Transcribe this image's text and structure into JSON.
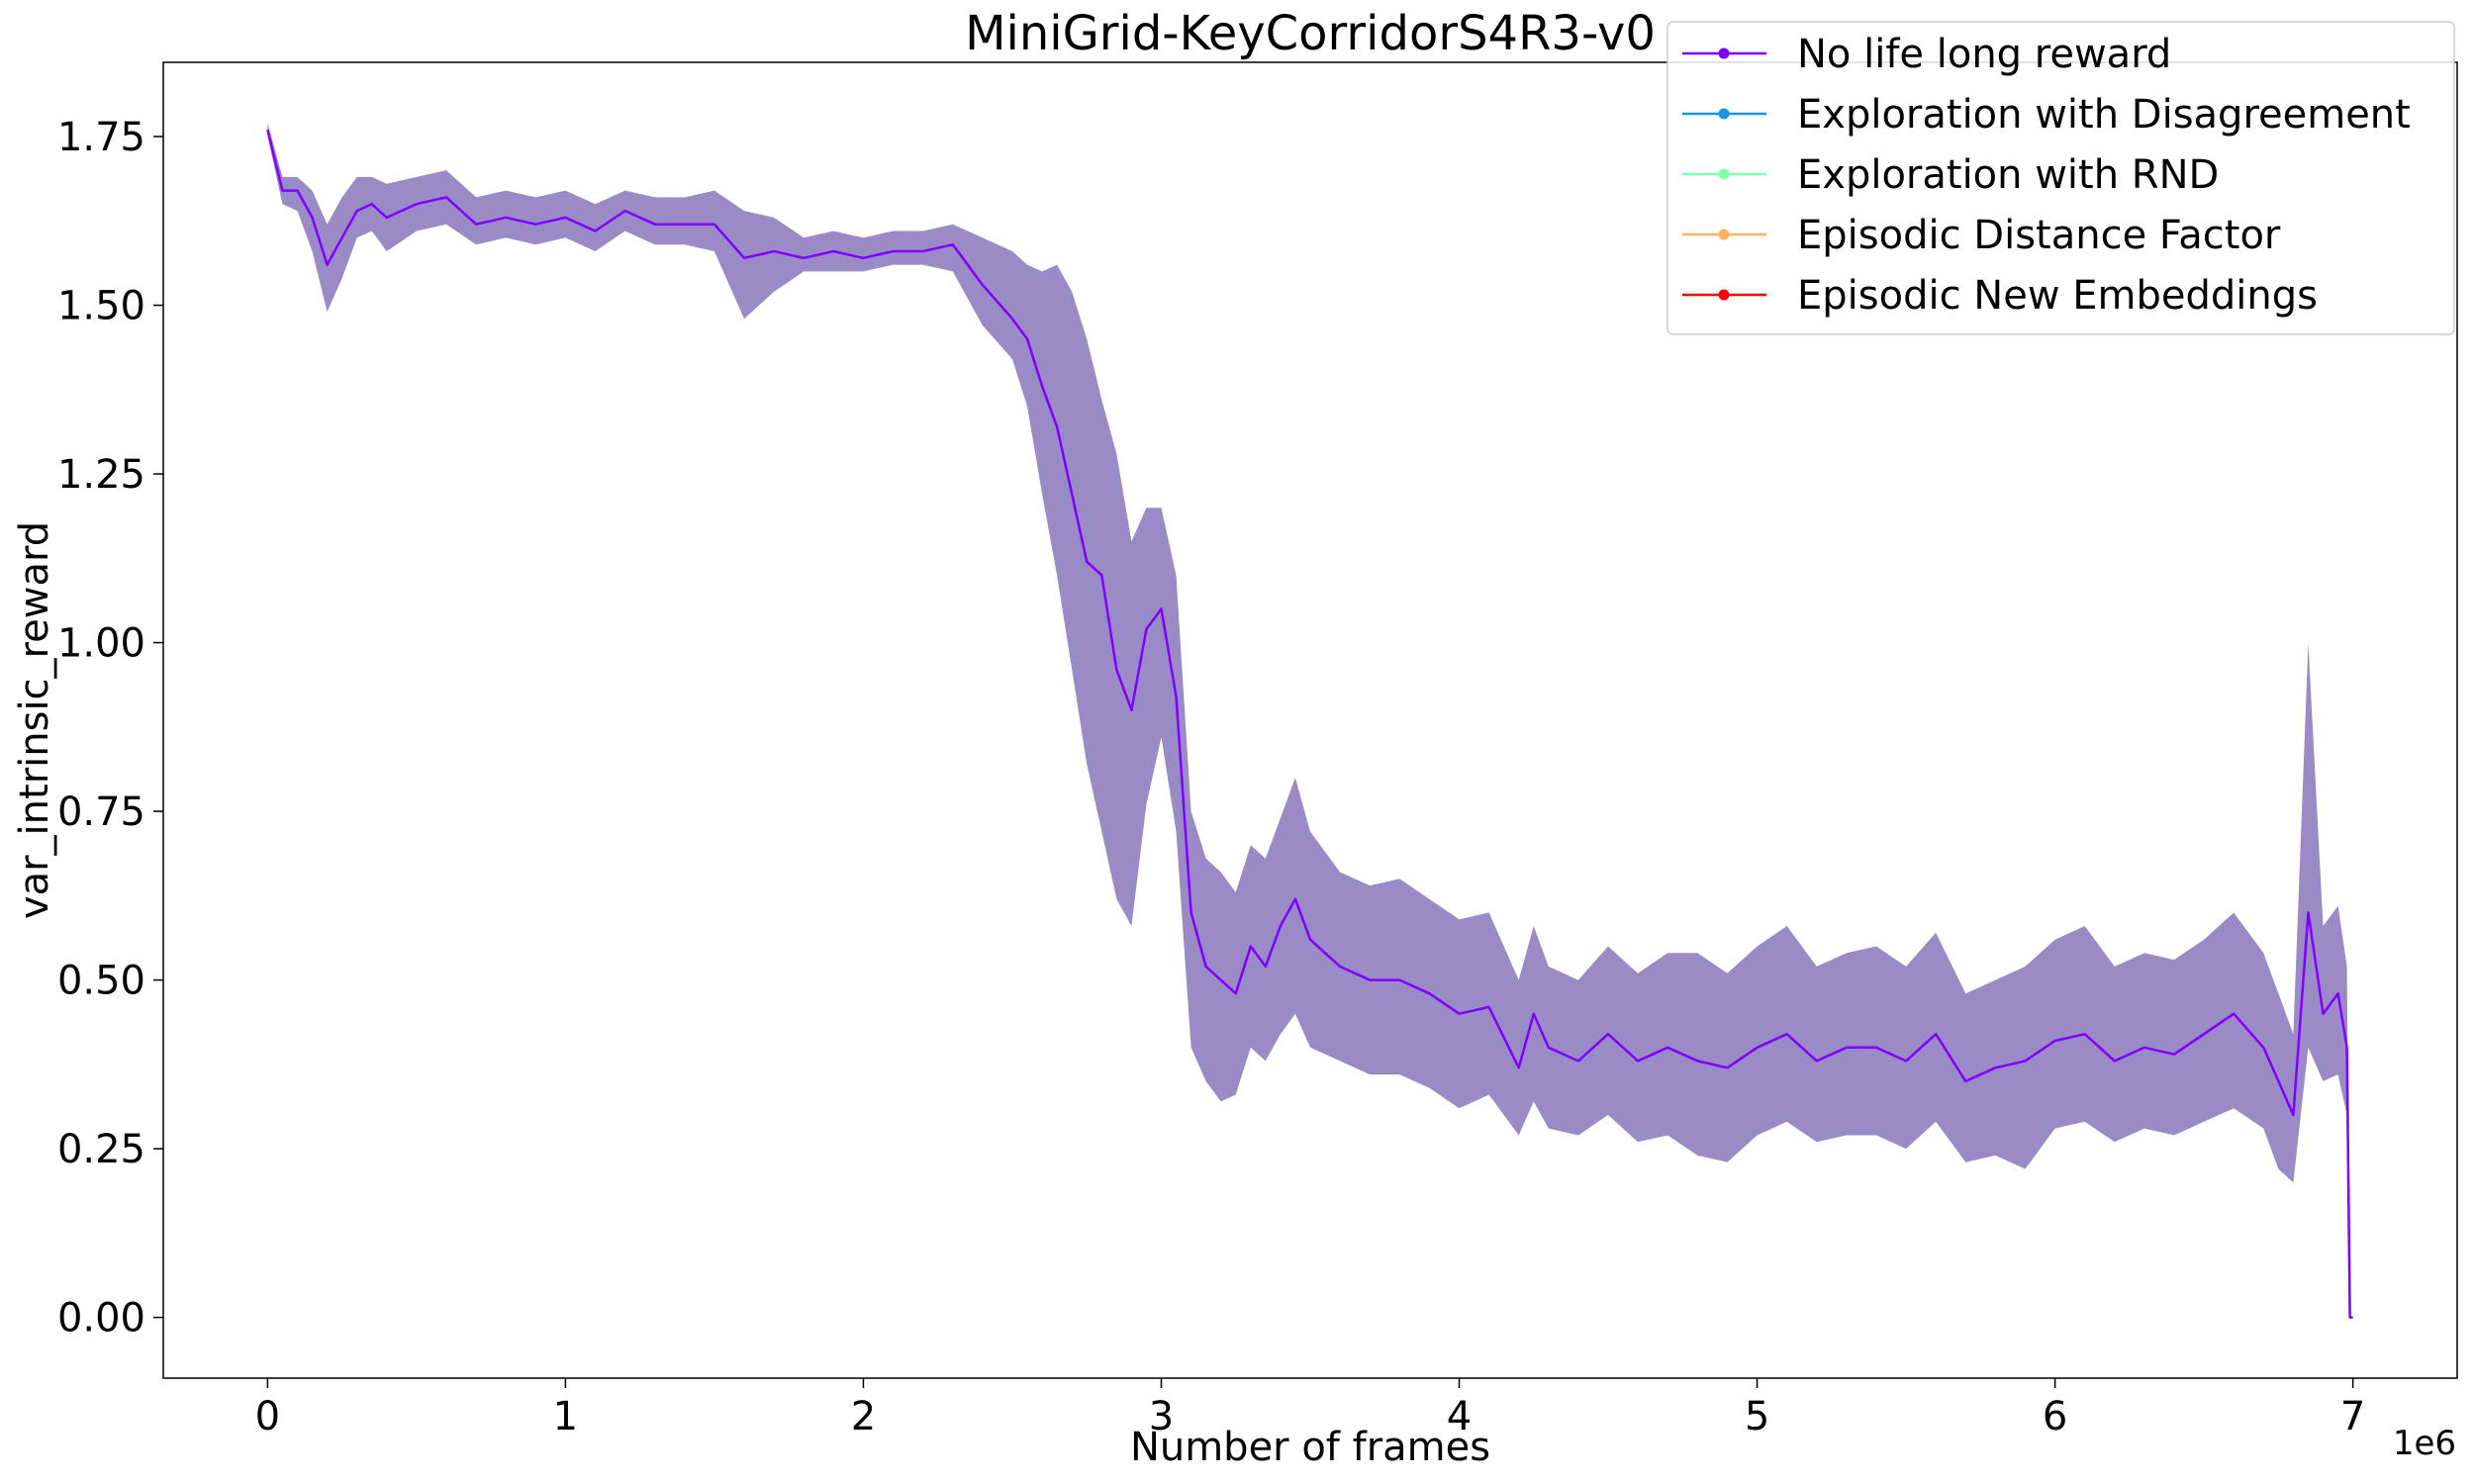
{
  "chart_data": {
    "type": "line",
    "title": "MiniGrid-KeyCorridorS4R3-v0",
    "xlabel": "Number of frames",
    "ylabel": "var_intrinsic_reward",
    "x_offset_label": "1e6",
    "xlim": [
      -0.35,
      7.35
    ],
    "ylim": [
      -0.09,
      1.86
    ],
    "x_ticks": [
      0,
      1,
      2,
      3,
      4,
      5,
      6,
      7
    ],
    "x_tick_labels": [
      "0",
      "1",
      "2",
      "3",
      "4",
      "5",
      "6",
      "7"
    ],
    "y_ticks": [
      0.0,
      0.25,
      0.5,
      0.75,
      1.0,
      1.25,
      1.5,
      1.75
    ],
    "y_tick_labels": [
      "0.00",
      "0.25",
      "0.50",
      "0.75",
      "1.00",
      "1.25",
      "1.50",
      "1.75"
    ],
    "grid": false,
    "legend_position": "top-right",
    "series": [
      {
        "name": "No life long reward",
        "color": "#8000ff",
        "band_color": "#9585c4",
        "x": [
          0,
          0.05,
          0.1,
          0.15,
          0.2,
          0.25,
          0.3,
          0.35,
          0.4,
          0.5,
          0.6,
          0.7,
          0.8,
          0.9,
          1.0,
          1.1,
          1.2,
          1.3,
          1.4,
          1.5,
          1.6,
          1.7,
          1.8,
          1.9,
          2.0,
          2.1,
          2.2,
          2.3,
          2.4,
          2.5,
          2.55,
          2.6,
          2.65,
          2.7,
          2.75,
          2.8,
          2.85,
          2.9,
          2.95,
          3.0,
          3.05,
          3.1,
          3.15,
          3.2,
          3.25,
          3.3,
          3.35,
          3.4,
          3.45,
          3.5,
          3.6,
          3.7,
          3.8,
          3.9,
          4.0,
          4.1,
          4.2,
          4.25,
          4.3,
          4.4,
          4.5,
          4.6,
          4.7,
          4.8,
          4.9,
          5.0,
          5.1,
          5.2,
          5.3,
          5.4,
          5.5,
          5.6,
          5.7,
          5.8,
          5.9,
          6.0,
          6.1,
          6.2,
          6.3,
          6.4,
          6.5,
          6.6,
          6.7,
          6.75,
          6.8,
          6.85,
          6.9,
          6.95,
          6.98,
          6.99,
          7.0
        ],
        "values": [
          1.76,
          1.67,
          1.67,
          1.63,
          1.56,
          1.6,
          1.64,
          1.65,
          1.63,
          1.65,
          1.66,
          1.62,
          1.63,
          1.62,
          1.63,
          1.61,
          1.64,
          1.62,
          1.62,
          1.62,
          1.57,
          1.58,
          1.57,
          1.58,
          1.57,
          1.58,
          1.58,
          1.59,
          1.53,
          1.48,
          1.45,
          1.38,
          1.32,
          1.22,
          1.12,
          1.1,
          0.96,
          0.9,
          1.02,
          1.05,
          0.92,
          0.6,
          0.52,
          0.5,
          0.48,
          0.55,
          0.52,
          0.58,
          0.62,
          0.56,
          0.52,
          0.5,
          0.5,
          0.48,
          0.45,
          0.46,
          0.37,
          0.45,
          0.4,
          0.38,
          0.42,
          0.38,
          0.4,
          0.38,
          0.37,
          0.4,
          0.42,
          0.38,
          0.4,
          0.4,
          0.38,
          0.42,
          0.35,
          0.37,
          0.38,
          0.41,
          0.42,
          0.38,
          0.4,
          0.39,
          0.42,
          0.45,
          0.4,
          0.35,
          0.3,
          0.6,
          0.45,
          0.48,
          0.4,
          0.0,
          0.0
        ],
        "lower": [
          1.75,
          1.65,
          1.64,
          1.58,
          1.49,
          1.54,
          1.6,
          1.61,
          1.58,
          1.61,
          1.62,
          1.59,
          1.6,
          1.59,
          1.6,
          1.58,
          1.61,
          1.59,
          1.59,
          1.58,
          1.48,
          1.52,
          1.55,
          1.55,
          1.55,
          1.56,
          1.56,
          1.55,
          1.47,
          1.42,
          1.35,
          1.22,
          1.1,
          0.96,
          0.82,
          0.72,
          0.62,
          0.58,
          0.76,
          0.86,
          0.72,
          0.4,
          0.35,
          0.32,
          0.33,
          0.4,
          0.38,
          0.42,
          0.45,
          0.4,
          0.38,
          0.36,
          0.36,
          0.34,
          0.31,
          0.33,
          0.27,
          0.32,
          0.28,
          0.27,
          0.3,
          0.26,
          0.27,
          0.24,
          0.23,
          0.27,
          0.29,
          0.26,
          0.27,
          0.27,
          0.25,
          0.29,
          0.23,
          0.24,
          0.22,
          0.28,
          0.29,
          0.26,
          0.28,
          0.27,
          0.29,
          0.31,
          0.28,
          0.22,
          0.2,
          0.4,
          0.35,
          0.36,
          0.3,
          0.0,
          0.0
        ],
        "upper": [
          1.77,
          1.69,
          1.69,
          1.67,
          1.62,
          1.66,
          1.69,
          1.69,
          1.68,
          1.69,
          1.7,
          1.66,
          1.67,
          1.66,
          1.67,
          1.65,
          1.67,
          1.66,
          1.66,
          1.67,
          1.64,
          1.63,
          1.6,
          1.61,
          1.6,
          1.61,
          1.61,
          1.62,
          1.6,
          1.58,
          1.56,
          1.55,
          1.56,
          1.52,
          1.45,
          1.36,
          1.28,
          1.15,
          1.2,
          1.2,
          1.1,
          0.75,
          0.68,
          0.66,
          0.63,
          0.7,
          0.68,
          0.74,
          0.8,
          0.72,
          0.66,
          0.64,
          0.65,
          0.62,
          0.59,
          0.6,
          0.5,
          0.58,
          0.52,
          0.5,
          0.55,
          0.51,
          0.54,
          0.54,
          0.51,
          0.55,
          0.58,
          0.52,
          0.54,
          0.55,
          0.52,
          0.57,
          0.48,
          0.5,
          0.52,
          0.56,
          0.58,
          0.52,
          0.54,
          0.53,
          0.56,
          0.6,
          0.54,
          0.48,
          0.42,
          1.0,
          0.58,
          0.61,
          0.52,
          0.0,
          0.0
        ]
      },
      {
        "name": "Exploration with Disagreement",
        "color": "#1996de",
        "values": []
      },
      {
        "name": "Exploration with RND",
        "color": "#80ffb4",
        "values": []
      },
      {
        "name": "Episodic Distance Factor",
        "color": "#ffb360",
        "values": []
      },
      {
        "name": "Episodic New Embeddings",
        "color": "#ff0000",
        "values": []
      }
    ]
  }
}
